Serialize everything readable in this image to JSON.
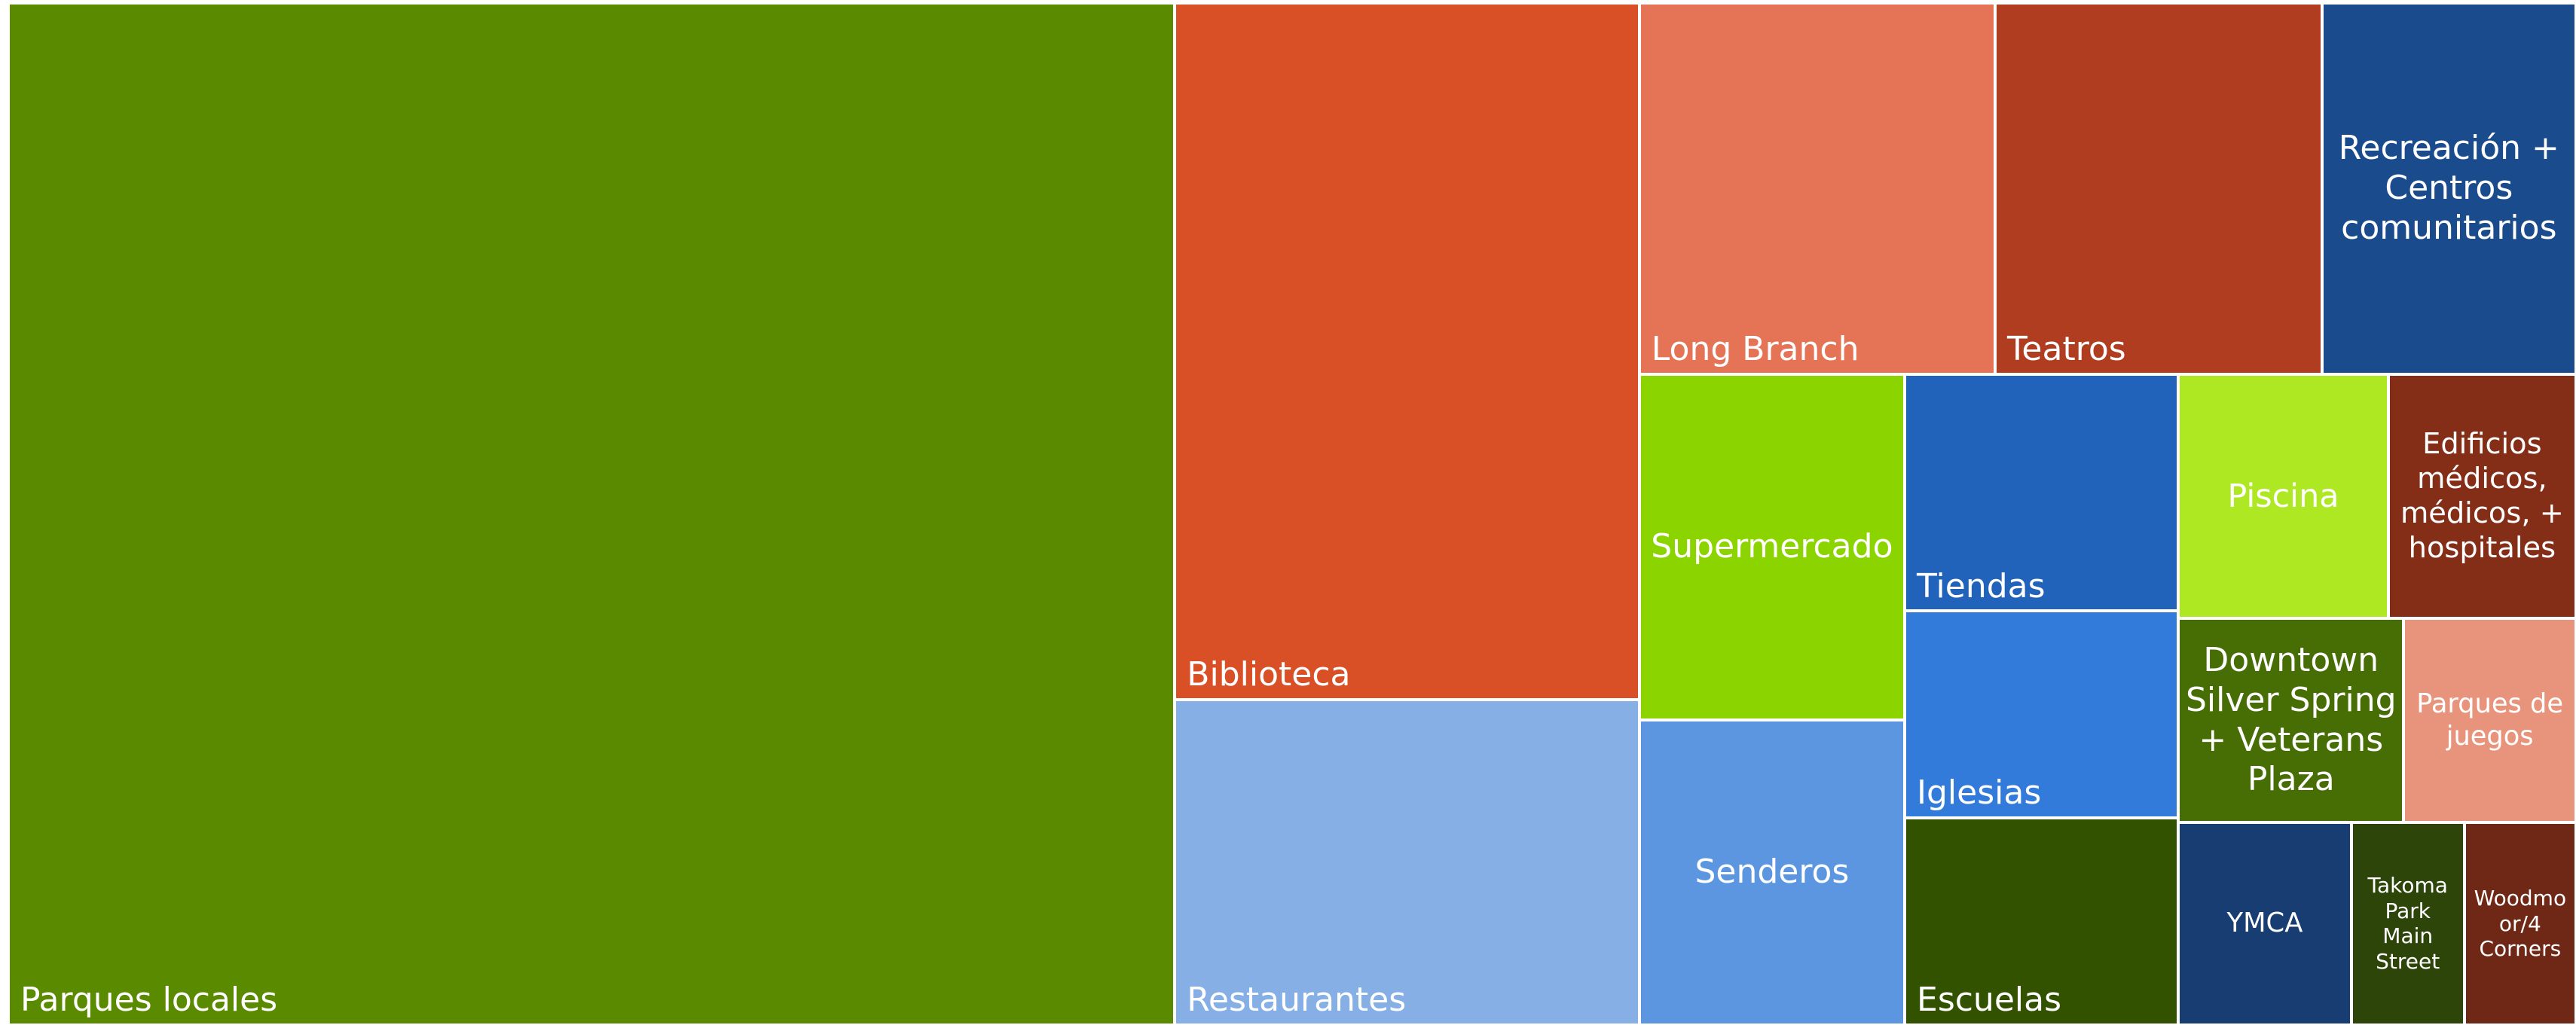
{
  "chart_data": {
    "type": "treemap",
    "categories": [
      "Parques locales",
      "Biblioteca",
      "Restaurantes",
      "Long Branch",
      "Teatros",
      "Recreación + Centros comunitarios",
      "Supermercado",
      "Senderos",
      "Tiendas",
      "Iglesias",
      "Escuelas",
      "Piscina",
      "Edificios médicos, médicos, + hospitales",
      "Downtown Silver Spring + Veterans Plaza",
      "Parques de juegos",
      "YMCA",
      "Takoma Park Main Street",
      "Woodmoor/4 Corners"
    ],
    "values": [
      442,
      120,
      56,
      49,
      45,
      35,
      34,
      30,
      24,
      21,
      21,
      19,
      17,
      17,
      13,
      13,
      8.5,
      8.4
    ],
    "colors": [
      "#5a8a00",
      "#d95027",
      "#86afe6",
      "#e47455",
      "#b03d1f",
      "#1a4b8c",
      "#8cd400",
      "#5c96e0",
      "#2162bb",
      "#337bda",
      "#325200",
      "#aee823",
      "#842e17",
      "#476e05",
      "#e8947c",
      "#173d72",
      "#2e4509",
      "#6f2815"
    ]
  }
}
